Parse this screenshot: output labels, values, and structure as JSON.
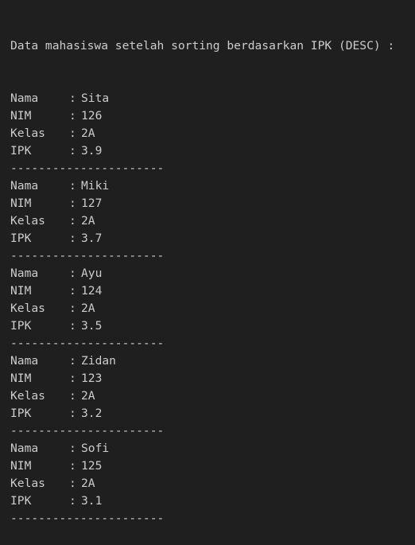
{
  "terminal": {
    "header": "Data mahasiswa setelah sorting berdasarkan IPK (DESC) :",
    "separator_char": ":",
    "divider": "----------------------",
    "records": [
      {
        "fields": [
          {
            "label": "Nama",
            "value": "Sita"
          },
          {
            "label": "NIM",
            "value": "126"
          },
          {
            "label": "Kelas",
            "value": "2A"
          },
          {
            "label": "IPK",
            "value": "3.9"
          }
        ]
      },
      {
        "fields": [
          {
            "label": "Nama",
            "value": "Miki"
          },
          {
            "label": "NIM",
            "value": "127"
          },
          {
            "label": "Kelas",
            "value": "2A"
          },
          {
            "label": "IPK",
            "value": "3.7"
          }
        ]
      },
      {
        "fields": [
          {
            "label": "Nama",
            "value": "Ayu"
          },
          {
            "label": "NIM",
            "value": "124"
          },
          {
            "label": "Kelas",
            "value": "2A"
          },
          {
            "label": "IPK",
            "value": "3.5"
          }
        ]
      },
      {
        "fields": [
          {
            "label": "Nama",
            "value": "Zidan"
          },
          {
            "label": "NIM",
            "value": "123"
          },
          {
            "label": "Kelas",
            "value": "2A"
          },
          {
            "label": "IPK",
            "value": "3.2"
          }
        ]
      },
      {
        "fields": [
          {
            "label": "Nama",
            "value": "Sofi"
          },
          {
            "label": "NIM",
            "value": "125"
          },
          {
            "label": "Kelas",
            "value": "2A"
          },
          {
            "label": "IPK",
            "value": "3.1"
          }
        ]
      }
    ]
  }
}
